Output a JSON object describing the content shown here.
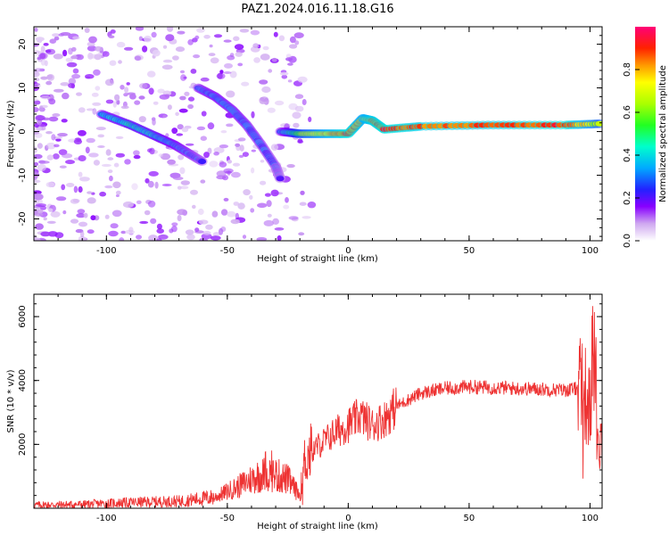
{
  "title": "PAZ1.2024.016.11.18.G16",
  "chart_data": [
    {
      "type": "heatmap",
      "xlabel": "Height of straight line (km)",
      "ylabel": "Frequency (Hz)",
      "xlim": [
        -130,
        105
      ],
      "ylim": [
        -25,
        24
      ],
      "xticks": [
        -100,
        -50,
        0,
        50,
        100
      ],
      "yticks": [
        -20,
        -10,
        0,
        10,
        20
      ],
      "colorbar": {
        "label": "Normalized spectral amplitude",
        "range": [
          0,
          1
        ],
        "ticks": [
          "0.0",
          "0.2",
          "0.4",
          "0.6",
          "0.8"
        ],
        "colormap": "rainbow"
      },
      "features": [
        {
          "x": [
            -102,
            -90,
            -80,
            -72,
            -66,
            -60
          ],
          "y": [
            4,
            1.5,
            -1,
            -3,
            -5,
            -7
          ],
          "level": [
            0.35,
            0.42,
            0.4,
            0.35,
            0.3,
            0.25
          ]
        },
        {
          "x": [
            -62,
            -55,
            -48,
            -42,
            -36,
            -30,
            -28
          ],
          "y": [
            10,
            8,
            5,
            1.5,
            -3,
            -8,
            -11
          ],
          "level": [
            0.3,
            0.33,
            0.32,
            0.3,
            0.28,
            0.25,
            0.2
          ]
        },
        {
          "x": [
            -28,
            -20,
            -10,
            0,
            6,
            10,
            15,
            30,
            60,
            90,
            105
          ],
          "y": [
            0,
            -0.5,
            -0.5,
            -0.5,
            3,
            2.5,
            0.5,
            1.2,
            1.5,
            1.5,
            1.8
          ],
          "level": [
            0.3,
            0.6,
            0.75,
            0.9,
            0.75,
            0.85,
            0.9,
            0.85,
            0.85,
            0.9,
            0.6
          ]
        }
      ]
    },
    {
      "type": "line",
      "xlabel": "Height of straight line (km)",
      "ylabel": "SNR (10 * v/v)",
      "xlim": [
        -130,
        105
      ],
      "ylim": [
        0,
        6700
      ],
      "xticks": [
        -100,
        -50,
        0,
        50,
        100
      ],
      "yticks": [
        2000,
        4000,
        6000
      ],
      "color": "#ee3333",
      "x": [
        -130,
        -110,
        -90,
        -70,
        -55,
        -45,
        -38,
        -32,
        -25,
        -20,
        -18,
        -15,
        -10,
        -5,
        0,
        5,
        10,
        15,
        20,
        30,
        40,
        50,
        60,
        70,
        80,
        90,
        95,
        98,
        100,
        102,
        103,
        104
      ],
      "y": [
        100,
        120,
        180,
        220,
        350,
        700,
        1000,
        1100,
        900,
        400,
        1500,
        1800,
        2100,
        2400,
        2600,
        2900,
        2600,
        2800,
        3200,
        3600,
        3750,
        3800,
        3780,
        3750,
        3730,
        3700,
        3750,
        3600,
        3000,
        5500,
        1800,
        2200
      ]
    }
  ]
}
